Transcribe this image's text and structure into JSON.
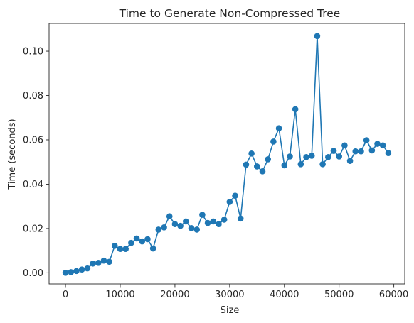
{
  "chart_data": {
    "type": "line",
    "title": "Time to Generate Non-Compressed Tree",
    "xlabel": "Size",
    "ylabel": "Time (seconds)",
    "xlim": [
      -3000,
      62000
    ],
    "ylim": [
      -0.005,
      0.1125
    ],
    "xticks": [
      0,
      10000,
      20000,
      30000,
      40000,
      50000,
      60000
    ],
    "xtick_labels": [
      "0",
      "10000",
      "20000",
      "30000",
      "40000",
      "50000",
      "60000"
    ],
    "yticks": [
      0.0,
      0.02,
      0.04,
      0.06,
      0.08,
      0.1
    ],
    "ytick_labels": [
      "0.00",
      "0.02",
      "0.04",
      "0.06",
      "0.08",
      "0.10"
    ],
    "grid": false,
    "legend": "none",
    "series": [
      {
        "color": "#1f77b4",
        "marker": "circle",
        "x": [
          0,
          1000,
          2000,
          3000,
          4000,
          5000,
          6000,
          7000,
          8000,
          9000,
          10000,
          11000,
          12000,
          13000,
          14000,
          15000,
          16000,
          17000,
          18000,
          19000,
          20000,
          21000,
          22000,
          23000,
          24000,
          25000,
          26000,
          27000,
          28000,
          29000,
          30000,
          31000,
          32000,
          33000,
          34000,
          35000,
          36000,
          37000,
          38000,
          39000,
          40000,
          41000,
          42000,
          43000,
          44000,
          45000,
          46000,
          47000,
          48000,
          49000,
          50000,
          51000,
          52000,
          53000,
          54000,
          55000,
          56000,
          57000,
          58000,
          59000
        ],
        "y": [
          0.0,
          0.0003,
          0.0008,
          0.0015,
          0.002,
          0.0042,
          0.0045,
          0.0055,
          0.005,
          0.0122,
          0.0108,
          0.0108,
          0.0135,
          0.0155,
          0.0142,
          0.0152,
          0.011,
          0.0195,
          0.0205,
          0.0255,
          0.022,
          0.0212,
          0.0232,
          0.0202,
          0.0195,
          0.0262,
          0.0225,
          0.0232,
          0.022,
          0.024,
          0.032,
          0.0348,
          0.0245,
          0.0488,
          0.0538,
          0.048,
          0.0458,
          0.0512,
          0.0592,
          0.0652,
          0.0485,
          0.0525,
          0.0738,
          0.049,
          0.0522,
          0.0528,
          0.1068,
          0.049,
          0.0522,
          0.055,
          0.0525,
          0.0575,
          0.0505,
          0.0548,
          0.0548,
          0.0598,
          0.0552,
          0.0582,
          0.0575,
          0.054
        ]
      }
    ]
  }
}
